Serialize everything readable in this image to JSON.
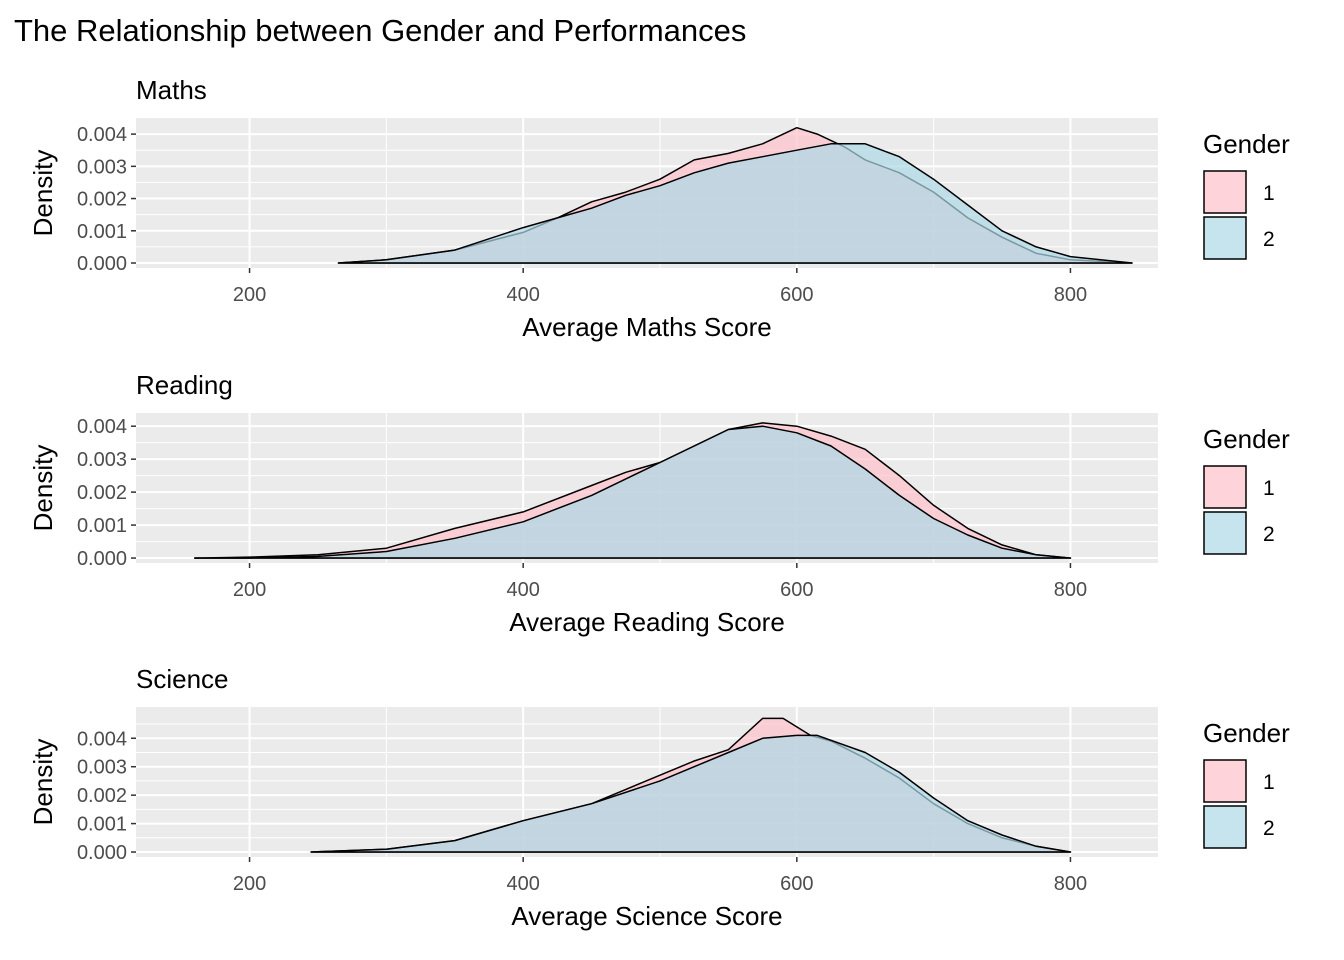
{
  "title": "The Relationship between Gender and Performances",
  "colors": {
    "g1": "#FFC0CB",
    "g2": "#ADD8E6",
    "panel_bg": "#EBEBEB",
    "outline": "#000000"
  },
  "chart_data": [
    {
      "type": "area",
      "title": "Maths",
      "xlabel": "Average Maths Score",
      "ylabel": "Density",
      "xlim": [
        117,
        864
      ],
      "ylim": [
        -0.000155,
        0.0045
      ],
      "xticks": [
        200,
        400,
        600,
        800
      ],
      "yticks": [
        0,
        0.001,
        0.002,
        0.003,
        0.004
      ],
      "ytick_labels": [
        "0.000",
        "0.001",
        "0.002",
        "0.003",
        "0.004"
      ],
      "grid": true,
      "legend": {
        "title": "Gender",
        "position": "right",
        "entries": [
          "1",
          "2"
        ]
      },
      "series": [
        {
          "name": "1",
          "x": [
            265,
            300,
            350,
            400,
            425,
            450,
            475,
            500,
            525,
            550,
            575,
            600,
            615,
            635,
            650,
            675,
            700,
            725,
            750,
            775,
            800,
            845
          ],
          "y": [
            0,
            0.0001,
            0.0004,
            0.00095,
            0.0014,
            0.0019,
            0.0022,
            0.0026,
            0.0032,
            0.0034,
            0.0037,
            0.0042,
            0.004,
            0.0036,
            0.0032,
            0.0028,
            0.0022,
            0.0014,
            0.0008,
            0.0003,
            0.0001,
            0
          ]
        },
        {
          "name": "2",
          "x": [
            265,
            300,
            350,
            400,
            425,
            450,
            475,
            500,
            525,
            550,
            575,
            600,
            625,
            650,
            675,
            700,
            725,
            750,
            775,
            800,
            845
          ],
          "y": [
            0,
            0.0001,
            0.0004,
            0.0011,
            0.0014,
            0.0017,
            0.0021,
            0.0024,
            0.0028,
            0.0031,
            0.0033,
            0.0035,
            0.0037,
            0.0037,
            0.0033,
            0.0026,
            0.0018,
            0.001,
            0.0005,
            0.0002,
            0
          ]
        }
      ]
    },
    {
      "type": "area",
      "title": "Reading",
      "xlabel": "Average Reading Score",
      "ylabel": "Density",
      "xlim": [
        117,
        864
      ],
      "ylim": [
        -0.00015,
        0.0044
      ],
      "xticks": [
        200,
        400,
        600,
        800
      ],
      "yticks": [
        0,
        0.001,
        0.002,
        0.003,
        0.004
      ],
      "ytick_labels": [
        "0.000",
        "0.001",
        "0.002",
        "0.003",
        "0.004"
      ],
      "grid": true,
      "legend": {
        "title": "Gender",
        "position": "right",
        "entries": [
          "1",
          "2"
        ]
      },
      "series": [
        {
          "name": "1",
          "x": [
            160,
            200,
            250,
            300,
            350,
            400,
            450,
            475,
            500,
            525,
            550,
            575,
            600,
            625,
            650,
            675,
            700,
            725,
            750,
            775,
            800
          ],
          "y": [
            0,
            3e-05,
            0.0001,
            0.0003,
            0.0009,
            0.0014,
            0.0022,
            0.0026,
            0.0029,
            0.0034,
            0.0039,
            0.0041,
            0.004,
            0.0037,
            0.0033,
            0.0025,
            0.0016,
            0.0009,
            0.0004,
            0.0001,
            0
          ]
        },
        {
          "name": "2",
          "x": [
            160,
            200,
            250,
            300,
            350,
            400,
            450,
            475,
            500,
            525,
            550,
            575,
            600,
            625,
            650,
            675,
            700,
            725,
            750,
            775,
            800
          ],
          "y": [
            0,
            0,
            5e-05,
            0.0002,
            0.0006,
            0.0011,
            0.0019,
            0.0024,
            0.0029,
            0.0034,
            0.0039,
            0.004,
            0.0038,
            0.0034,
            0.0027,
            0.0019,
            0.0012,
            0.0007,
            0.0003,
            0.0001,
            0
          ]
        }
      ]
    },
    {
      "type": "area",
      "title": "Science",
      "xlabel": "Average Science Score",
      "ylabel": "Density",
      "xlim": [
        117,
        864
      ],
      "ylim": [
        -0.000175,
        0.0051
      ],
      "xticks": [
        200,
        400,
        600,
        800
      ],
      "yticks": [
        0,
        0.001,
        0.002,
        0.003,
        0.004
      ],
      "ytick_labels": [
        "0.000",
        "0.001",
        "0.002",
        "0.003",
        "0.004"
      ],
      "grid": true,
      "legend": {
        "title": "Gender",
        "position": "right",
        "entries": [
          "1",
          "2"
        ]
      },
      "series": [
        {
          "name": "1",
          "x": [
            245,
            300,
            350,
            400,
            450,
            500,
            525,
            550,
            575,
            590,
            610,
            625,
            650,
            675,
            700,
            725,
            750,
            775,
            800
          ],
          "y": [
            0,
            0.0001,
            0.0004,
            0.0011,
            0.0017,
            0.0027,
            0.0032,
            0.0036,
            0.0047,
            0.0047,
            0.0041,
            0.0039,
            0.0033,
            0.0026,
            0.0017,
            0.001,
            0.0005,
            0.0002,
            0
          ]
        },
        {
          "name": "2",
          "x": [
            245,
            300,
            350,
            400,
            450,
            500,
            525,
            550,
            575,
            600,
            615,
            650,
            675,
            700,
            725,
            750,
            775,
            800
          ],
          "y": [
            0,
            0.0001,
            0.0004,
            0.0011,
            0.0017,
            0.0025,
            0.003,
            0.0035,
            0.004,
            0.0041,
            0.0041,
            0.0035,
            0.0028,
            0.0019,
            0.0011,
            0.0006,
            0.0002,
            0
          ]
        }
      ]
    }
  ]
}
